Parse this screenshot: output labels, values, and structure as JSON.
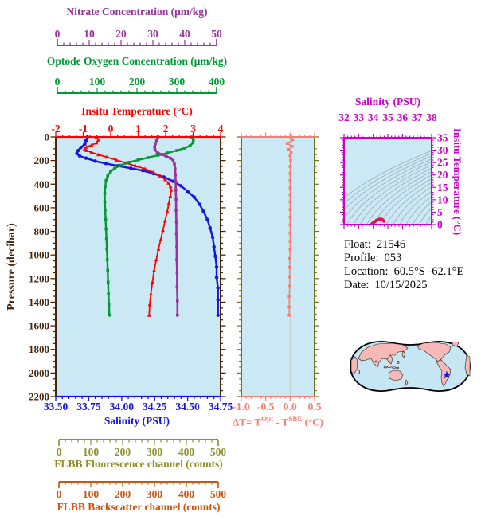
{
  "colors": {
    "nitrate": "#993399",
    "oxygen": "#009933",
    "temperature": "#FF0000",
    "salinity": "#1515DD",
    "pressure_axis": "#4A2408",
    "delta": "#F97C70",
    "olive_axis": "#6F6F1F",
    "fluorescence": "#8F8F2E",
    "backscatter": "#CC5511",
    "ts_magenta": "#CC00CC",
    "ts_curve_outer": "#DD2200",
    "ts_curve_inner": "#EE00AA",
    "plot_bg": "#CBE9F5",
    "contour": "#9AA8B4",
    "zero_gridline": "#C9C9C9",
    "land": "#F6B9B6",
    "ocean": "#C5E6F2",
    "map_outline": "#000000",
    "star": "#1414EE",
    "info_text": "#000000"
  },
  "chart_data": [
    {
      "id": "profile",
      "type": "line",
      "ylabel": "Pressure (decibar)",
      "ylim": [
        0,
        2200
      ],
      "y_ticks": [
        0,
        200,
        400,
        600,
        800,
        1000,
        1200,
        1400,
        1600,
        1800,
        2000,
        2200
      ],
      "y_minor_step": 50,
      "x_axes": [
        {
          "id": "nitrate",
          "label": "Nitrate Concentration (μm/kg)",
          "lim": [
            0,
            50
          ],
          "ticks": [
            0,
            10,
            20,
            30,
            40,
            50
          ],
          "minor_step": 2,
          "color_key": "nitrate"
        },
        {
          "id": "oxygen",
          "label": "Optode Oxygen Concentration (μm/kg)",
          "lim": [
            0,
            400
          ],
          "ticks": [
            0,
            100,
            200,
            300,
            400
          ],
          "minor_step": 20,
          "color_key": "oxygen"
        },
        {
          "id": "temperature",
          "label": "Insitu Temperature (°C)",
          "lim": [
            -2,
            4
          ],
          "ticks": [
            -2,
            -1,
            0,
            1,
            2,
            3,
            4
          ],
          "minor_step": 0.25,
          "color_key": "temperature"
        },
        {
          "id": "salinity",
          "label": "Salinity (PSU)",
          "lim": [
            33.5,
            34.75
          ],
          "ticks": [
            33.5,
            33.75,
            34.0,
            34.25,
            34.5,
            34.75
          ],
          "tick_labels": [
            "33.50",
            "33.75",
            "34.00",
            "34.25",
            "34.50",
            "34.75"
          ],
          "minor_step": 0.05,
          "color_key": "salinity"
        },
        {
          "id": "fluorescence",
          "label": "FLBB Fluorescence channel (counts)",
          "lim": [
            0,
            500
          ],
          "ticks": [
            0,
            100,
            200,
            300,
            400,
            500
          ],
          "minor_step": 20,
          "color_key": "fluorescence"
        },
        {
          "id": "backscatter",
          "label": "FLBB Backscatter channel (counts)",
          "lim": [
            0,
            500
          ],
          "ticks": [
            0,
            100,
            200,
            300,
            400,
            500
          ],
          "minor_step": 20,
          "color_key": "backscatter"
        }
      ],
      "series": [
        {
          "name": "Salinity (PSU)",
          "axis": "salinity",
          "color_key": "salinity",
          "marker": "circle",
          "lw": 2.4,
          "points": [
            [
              33.74,
              0
            ],
            [
              33.73,
              30
            ],
            [
              33.72,
              60
            ],
            [
              33.69,
              90
            ],
            [
              33.67,
              115
            ],
            [
              33.66,
              140
            ],
            [
              33.68,
              160
            ],
            [
              33.73,
              180
            ],
            [
              33.8,
              205
            ],
            [
              33.88,
              225
            ],
            [
              33.97,
              245
            ],
            [
              34.07,
              265
            ],
            [
              34.16,
              285
            ],
            [
              34.24,
              310
            ],
            [
              34.32,
              340
            ],
            [
              34.39,
              375
            ],
            [
              34.45,
              415
            ],
            [
              34.5,
              460
            ],
            [
              34.55,
              510
            ],
            [
              34.59,
              570
            ],
            [
              34.62,
              630
            ],
            [
              34.65,
              700
            ],
            [
              34.67,
              770
            ],
            [
              34.69,
              850
            ],
            [
              34.7,
              930
            ],
            [
              34.71,
              1010
            ],
            [
              34.72,
              1100
            ],
            [
              34.72,
              1190
            ],
            [
              34.73,
              1280
            ],
            [
              34.73,
              1380
            ],
            [
              34.73,
              1510
            ]
          ]
        },
        {
          "name": "Insitu Temperature (°C)",
          "axis": "temperature",
          "color_key": "temperature",
          "marker": "triangle",
          "lw": 1.8,
          "points": [
            [
              -0.52,
              0
            ],
            [
              -0.45,
              25
            ],
            [
              -0.52,
              50
            ],
            [
              -0.7,
              70
            ],
            [
              -0.88,
              85
            ],
            [
              -0.95,
              100
            ],
            [
              -0.88,
              115
            ],
            [
              -0.7,
              130
            ],
            [
              -0.45,
              150
            ],
            [
              -0.15,
              170
            ],
            [
              0.2,
              195
            ],
            [
              0.55,
              220
            ],
            [
              0.9,
              245
            ],
            [
              1.25,
              270
            ],
            [
              1.55,
              300
            ],
            [
              1.8,
              330
            ],
            [
              1.98,
              360
            ],
            [
              2.1,
              390
            ],
            [
              2.18,
              420
            ],
            [
              2.2,
              450
            ],
            [
              2.17,
              500
            ],
            [
              2.12,
              560
            ],
            [
              2.06,
              630
            ],
            [
              1.98,
              710
            ],
            [
              1.9,
              790
            ],
            [
              1.82,
              870
            ],
            [
              1.74,
              950
            ],
            [
              1.66,
              1040
            ],
            [
              1.58,
              1130
            ],
            [
              1.52,
              1230
            ],
            [
              1.46,
              1330
            ],
            [
              1.42,
              1420
            ],
            [
              1.4,
              1510
            ]
          ]
        },
        {
          "name": "Optode Oxygen Concentration (μm/kg)",
          "axis": "oxygen",
          "color_key": "oxygen",
          "marker": "square",
          "lw": 2.4,
          "points": [
            [
              330,
              0
            ],
            [
              334,
              25
            ],
            [
              333,
              50
            ],
            [
              326,
              75
            ],
            [
              312,
              95
            ],
            [
              294,
              115
            ],
            [
              272,
              135
            ],
            [
              248,
              155
            ],
            [
              224,
              175
            ],
            [
              200,
              195
            ],
            [
              178,
              215
            ],
            [
              158,
              240
            ],
            [
              143,
              265
            ],
            [
              133,
              295
            ],
            [
              126,
              330
            ],
            [
              122,
              370
            ],
            [
              120,
              420
            ],
            [
              119,
              480
            ],
            [
              119,
              550
            ],
            [
              120,
              620
            ],
            [
              121,
              700
            ],
            [
              122,
              780
            ],
            [
              123,
              860
            ],
            [
              124,
              950
            ],
            [
              125,
              1040
            ],
            [
              126,
              1130
            ],
            [
              127,
              1230
            ],
            [
              128,
              1330
            ],
            [
              129,
              1420
            ],
            [
              130,
              1510
            ]
          ]
        },
        {
          "name": "Nitrate Concentration (μm/kg)",
          "axis": "nitrate",
          "color_key": "nitrate",
          "marker": "square",
          "lw": 2.6,
          "points": [
            [
              31.0,
              0
            ],
            [
              30.6,
              30
            ],
            [
              30.2,
              60
            ],
            [
              30.0,
              85
            ],
            [
              30.1,
              110
            ],
            [
              30.8,
              130
            ],
            [
              32.0,
              148
            ],
            [
              33.5,
              163
            ],
            [
              34.8,
              180
            ],
            [
              35.6,
              200
            ],
            [
              36.0,
              230
            ],
            [
              36.2,
              270
            ],
            [
              36.3,
              320
            ],
            [
              36.4,
              380
            ],
            [
              36.4,
              450
            ],
            [
              36.5,
              530
            ],
            [
              36.5,
              620
            ],
            [
              36.6,
              720
            ],
            [
              36.6,
              820
            ],
            [
              36.7,
              930
            ],
            [
              36.7,
              1040
            ],
            [
              36.8,
              1150
            ],
            [
              36.8,
              1270
            ],
            [
              36.9,
              1390
            ],
            [
              36.9,
              1510
            ]
          ]
        }
      ]
    },
    {
      "id": "delta_t",
      "type": "line",
      "xlabel_parts": {
        "p1": "ΔT= T",
        "sup1": "Opt",
        "p2": " - T",
        "sup2": "SBE",
        "p3": " (°C)"
      },
      "xlim": [
        -1.0,
        0.5
      ],
      "x_ticks": [
        -1.0,
        -0.5,
        0.0,
        0.5
      ],
      "x_tick_labels": [
        "-1.0",
        "-0.5",
        "0.0",
        "0.5"
      ],
      "x_minor_step": 0.1,
      "ylim": [
        0,
        2200
      ],
      "y_minor_step": 50,
      "zero_line": 0.0,
      "points": [
        [
          0.02,
          0
        ],
        [
          0.05,
          25
        ],
        [
          -0.06,
          55
        ],
        [
          0.04,
          80
        ],
        [
          -0.03,
          105
        ],
        [
          0.02,
          130
        ],
        [
          0.0,
          160
        ],
        [
          0.01,
          200
        ],
        [
          0.0,
          250
        ],
        [
          0.0,
          310
        ],
        [
          0.0,
          370
        ],
        [
          0.0,
          430
        ],
        [
          0.0,
          490
        ],
        [
          0.0,
          550
        ],
        [
          0.0,
          615
        ],
        [
          0.0,
          680
        ],
        [
          0.0,
          745
        ],
        [
          0.0,
          815
        ],
        [
          0.0,
          885
        ],
        [
          0.0,
          955
        ],
        [
          -0.01,
          1030
        ],
        [
          -0.01,
          1105
        ],
        [
          -0.01,
          1185
        ],
        [
          -0.01,
          1265
        ],
        [
          -0.02,
          1350
        ],
        [
          -0.02,
          1440
        ],
        [
          -0.02,
          1510
        ]
      ]
    },
    {
      "id": "ts_diagram",
      "type": "line",
      "xlabel": "Salinity (PSU)",
      "xlim": [
        32,
        38
      ],
      "x_ticks": [
        32,
        33,
        34,
        35,
        36,
        37,
        38
      ],
      "x_minor_step": 0.25,
      "ylabel": "Insitu Temperature (°C)",
      "ylim": [
        0,
        35
      ],
      "y_ticks": [
        0,
        5,
        10,
        15,
        20,
        25,
        30,
        35
      ],
      "y_minor_step": 1,
      "isopycnal_contours": true,
      "points": [
        [
          33.88,
          0.0
        ],
        [
          33.92,
          0.3
        ],
        [
          33.99,
          0.7
        ],
        [
          34.08,
          1.1
        ],
        [
          34.18,
          1.5
        ],
        [
          34.29,
          1.85
        ],
        [
          34.4,
          2.1
        ],
        [
          34.47,
          2.2
        ],
        [
          34.55,
          2.12
        ],
        [
          34.62,
          1.95
        ],
        [
          34.67,
          1.75
        ],
        [
          34.71,
          1.55
        ],
        [
          34.73,
          1.42
        ]
      ]
    }
  ],
  "info": {
    "lines": [
      {
        "label": "Float:",
        "value": "21546"
      },
      {
        "label": "Profile:",
        "value": "053"
      },
      {
        "label": "Location:",
        "value": "60.5°S  -62.1°E"
      },
      {
        "label": "Date:",
        "value": "10/15/2025"
      }
    ]
  },
  "map": {
    "marker": "float-position-star"
  }
}
